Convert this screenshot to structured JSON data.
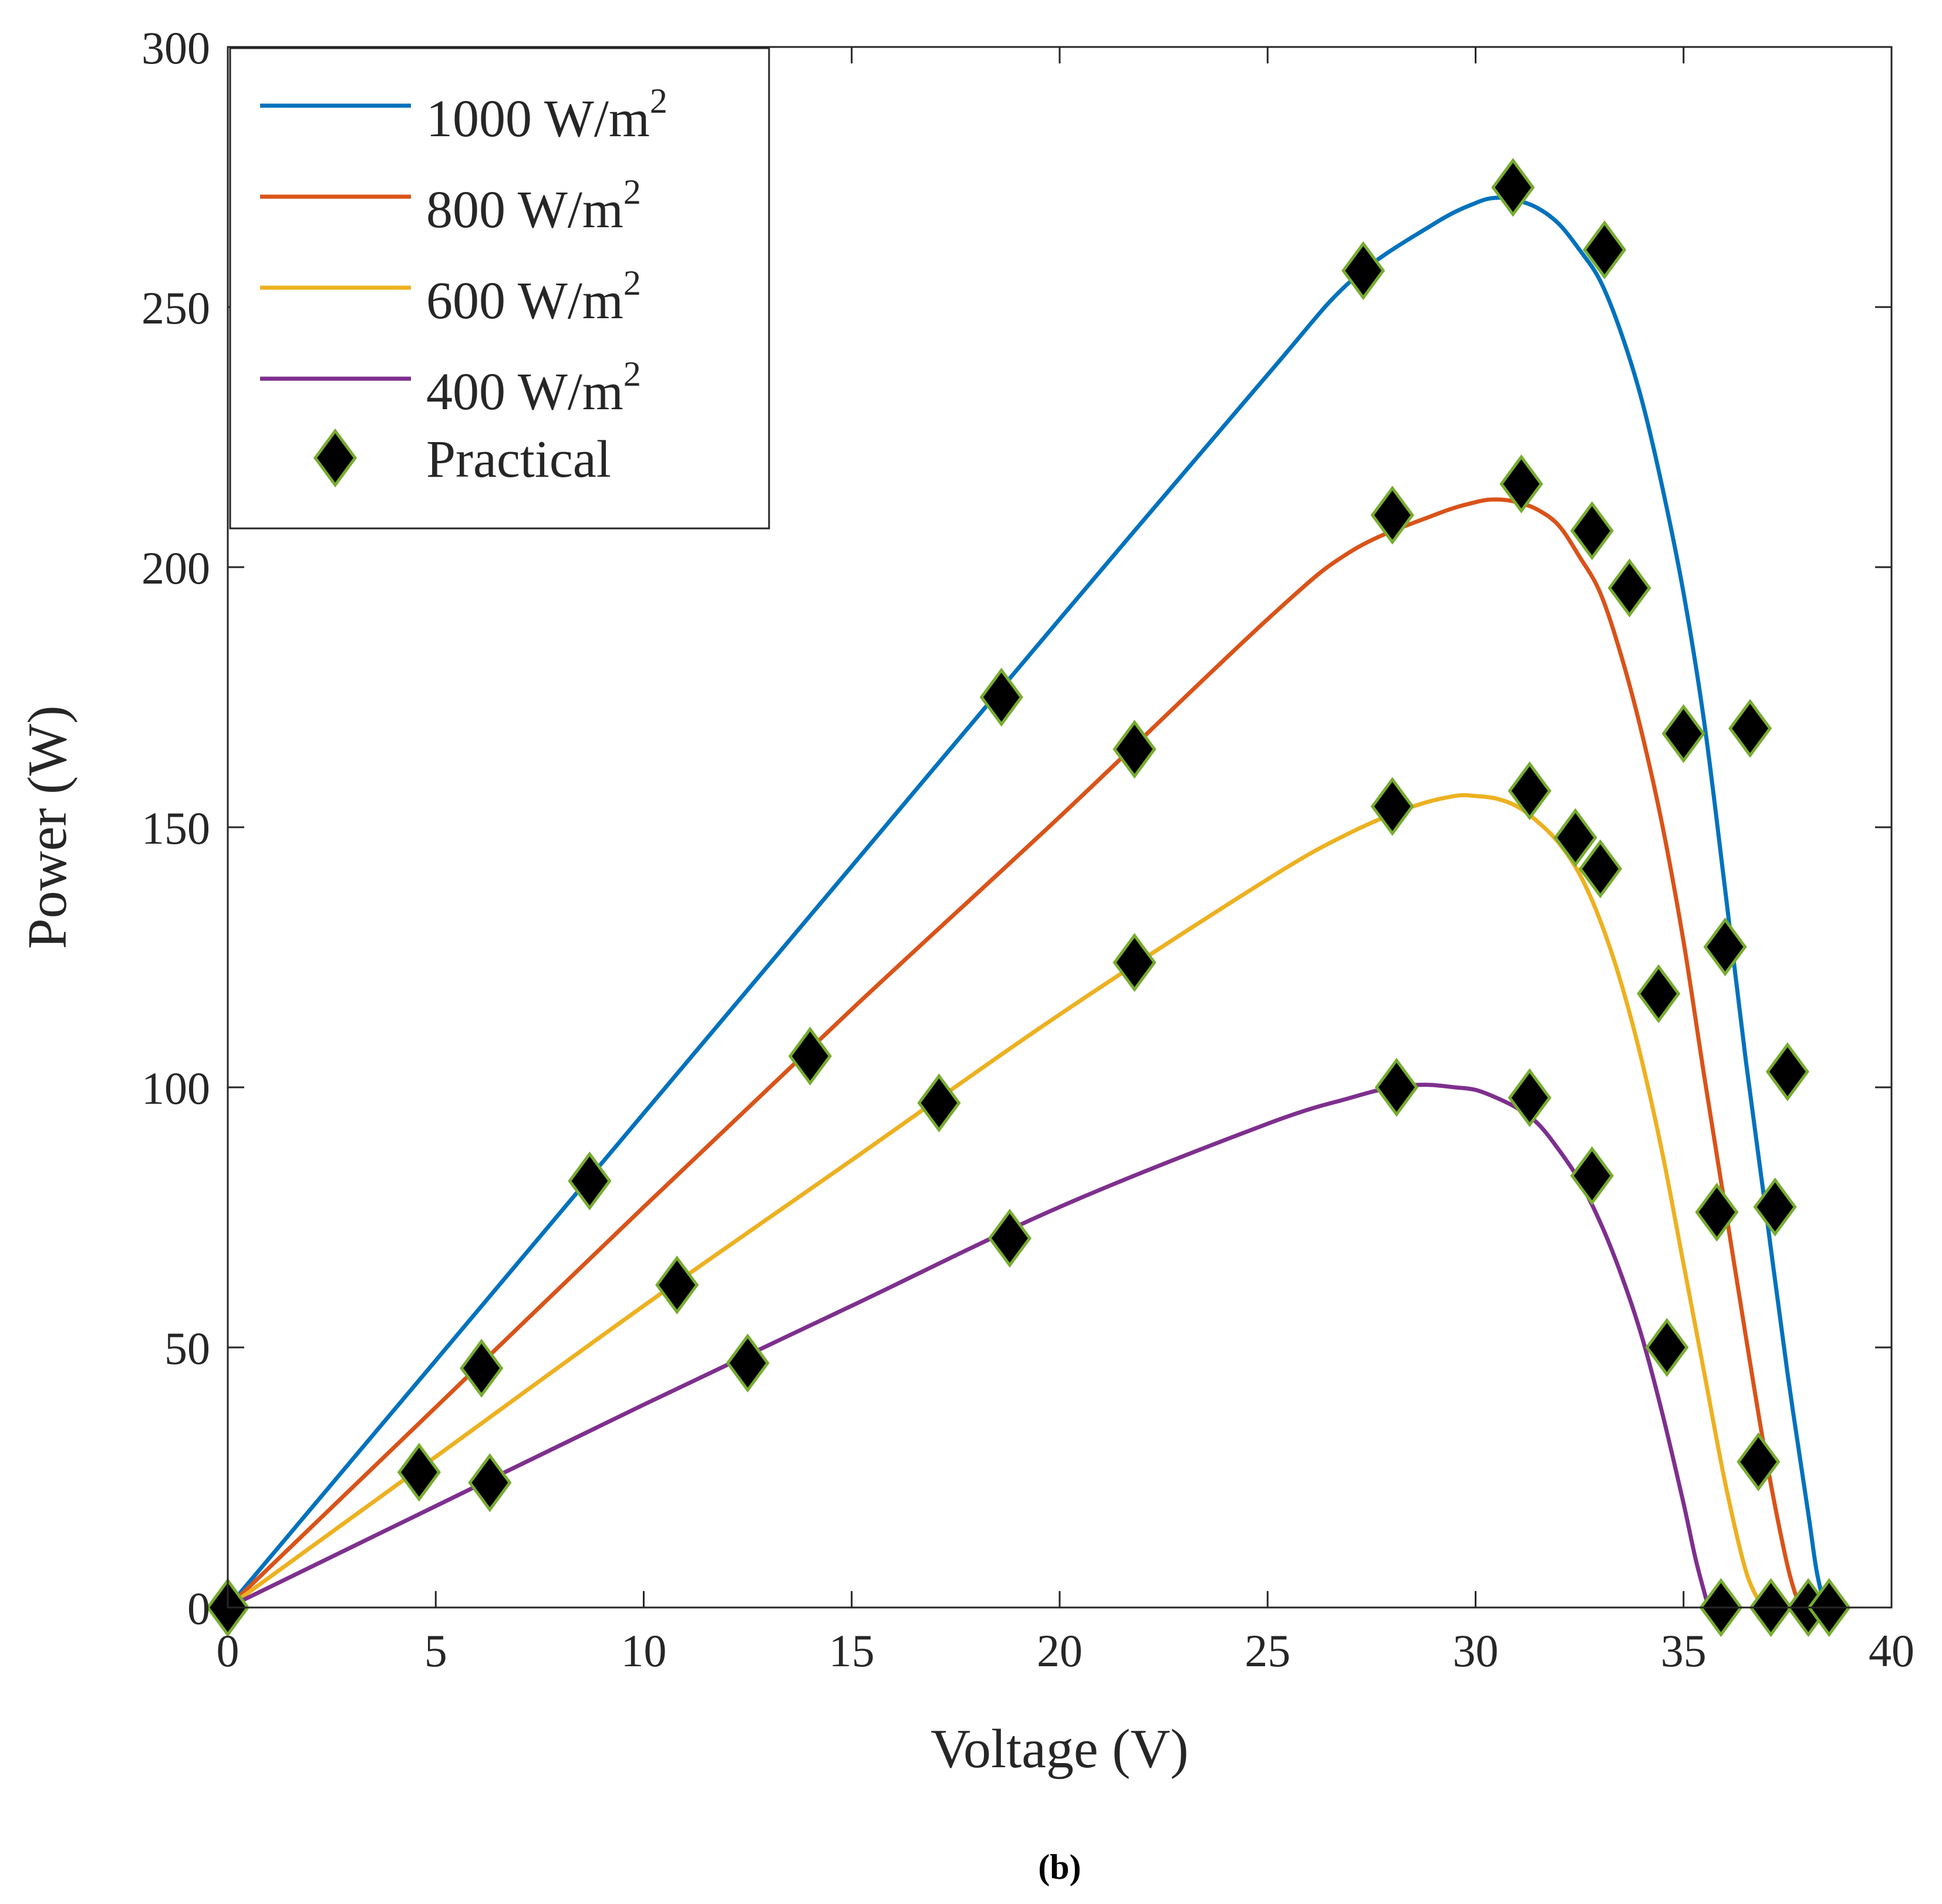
{
  "chart_data": {
    "type": "line",
    "xlabel": "Voltage (V)",
    "ylabel": "Power (W)",
    "xlim": [
      0,
      40
    ],
    "ylim": [
      0,
      300
    ],
    "xticks": [
      0,
      5,
      10,
      15,
      20,
      25,
      30,
      35,
      40
    ],
    "yticks": [
      0,
      50,
      100,
      150,
      200,
      250,
      300
    ],
    "grid": false,
    "legend_position": "top-left",
    "caption": "(b)",
    "series": [
      {
        "name": "1000 W/m2",
        "label_main": "1000 W/m",
        "label_sup": "2",
        "color": "#0072BD",
        "x": [
          0,
          5,
          10,
          15,
          20,
          25,
          27,
          29,
          30,
          30.5,
          31,
          31.5,
          32,
          32.5,
          33,
          33.5,
          34,
          34.5,
          35,
          35.5,
          36,
          36.5,
          37,
          37.5,
          38,
          38.2,
          38.4
        ],
        "y": [
          0,
          47.5,
          95,
          142.5,
          190,
          237,
          255,
          266,
          270,
          271,
          270.5,
          269,
          266,
          261,
          255,
          245,
          232,
          215,
          195,
          170,
          138,
          105,
          75,
          45,
          18,
          7,
          0
        ]
      },
      {
        "name": "800 W/m2",
        "label_main": "800 W/m",
        "label_sup": "2",
        "color": "#D95319",
        "x": [
          0,
          5,
          10,
          15,
          20,
          25,
          27,
          29,
          30,
          30.5,
          31,
          31.5,
          32,
          32.5,
          33,
          33.5,
          34,
          34.5,
          35,
          35.5,
          36,
          36.5,
          37,
          37.5,
          37.8
        ],
        "y": [
          0,
          38.5,
          77,
          115,
          152,
          190,
          203,
          210,
          212.5,
          213,
          212.5,
          211,
          208,
          202,
          195,
          183,
          168,
          150,
          128,
          102,
          77,
          52,
          28,
          8,
          0
        ]
      },
      {
        "name": "600 W/m2",
        "label_main": "600 W/m",
        "label_sup": "2",
        "color": "#EDB120",
        "x": [
          0,
          5,
          10,
          15,
          20,
          25,
          27,
          28.5,
          29.5,
          30,
          30.5,
          31,
          31.5,
          32,
          32.5,
          33,
          33.5,
          34,
          34.5,
          35,
          35.5,
          36,
          36.5,
          36.9
        ],
        "y": [
          0,
          29,
          58,
          86,
          114,
          140,
          149,
          154,
          156,
          156,
          155.5,
          154,
          151,
          147,
          141,
          132,
          120,
          105,
          87,
          66,
          45,
          24,
          7,
          0
        ]
      },
      {
        "name": "400 W/m2",
        "label_main": "400 W/m",
        "label_sup": "2",
        "color": "#7E2F8E",
        "x": [
          0,
          5,
          10,
          15,
          20,
          25,
          27,
          28,
          28.8,
          29.5,
          30,
          30.5,
          31,
          31.5,
          32,
          32.5,
          33,
          33.5,
          34,
          34.5,
          35,
          35.3,
          35.6
        ],
        "y": [
          0,
          19.5,
          39,
          58,
          77,
          93,
          98,
          100,
          100.5,
          100,
          99.5,
          98,
          96,
          93,
          88,
          82,
          74,
          64,
          52,
          37,
          20,
          9,
          0
        ]
      }
    ],
    "practical": {
      "name": "Practical",
      "marker": "diamond",
      "fill": "#000000",
      "edge": "#77AC30",
      "points": [
        [
          0,
          0
        ],
        [
          4.6,
          26
        ],
        [
          6.1,
          46
        ],
        [
          6.3,
          24
        ],
        [
          8.7,
          82
        ],
        [
          10.8,
          62
        ],
        [
          12.5,
          47
        ],
        [
          14.0,
          106
        ],
        [
          17.1,
          97
        ],
        [
          18.6,
          175
        ],
        [
          18.8,
          71
        ],
        [
          21.8,
          165
        ],
        [
          21.8,
          124
        ],
        [
          27.3,
          257
        ],
        [
          28.0,
          210
        ],
        [
          28.0,
          154
        ],
        [
          28.1,
          100
        ],
        [
          30.9,
          273
        ],
        [
          31.1,
          216
        ],
        [
          31.3,
          157
        ],
        [
          31.3,
          98
        ],
        [
          32.4,
          148
        ],
        [
          32.8,
          207
        ],
        [
          32.8,
          83
        ],
        [
          33.0,
          142
        ],
        [
          33.1,
          261
        ],
        [
          33.7,
          196
        ],
        [
          34.4,
          118
        ],
        [
          34.6,
          50
        ],
        [
          35.0,
          168
        ],
        [
          35.8,
          76
        ],
        [
          36.0,
          127
        ],
        [
          36.6,
          169
        ],
        [
          36.8,
          28
        ],
        [
          35.9,
          0
        ],
        [
          37.1,
          0
        ],
        [
          37.2,
          77
        ],
        [
          37.5,
          103
        ],
        [
          38.0,
          0
        ],
        [
          38.5,
          0
        ]
      ]
    }
  }
}
